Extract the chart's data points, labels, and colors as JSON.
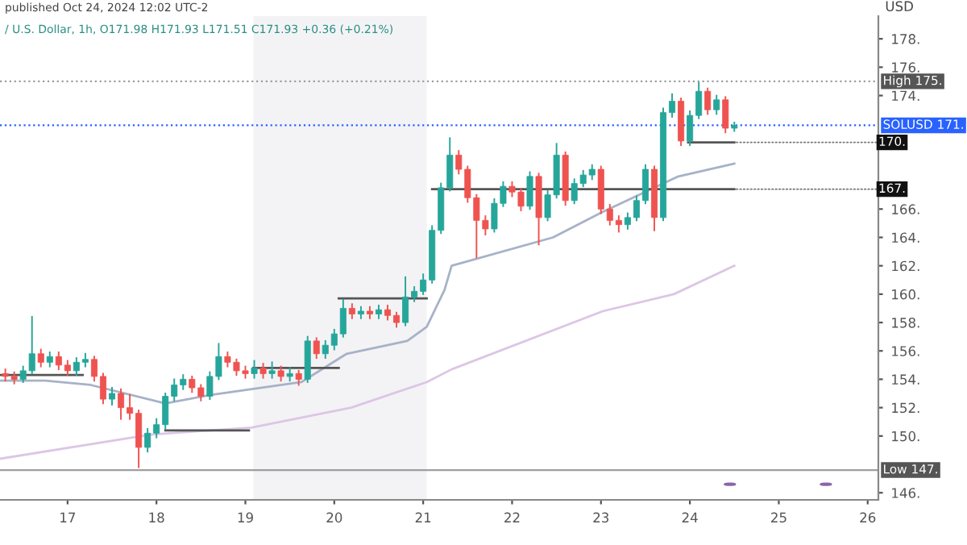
{
  "chart_data": {
    "type": "candlestick",
    "title": "published Oct 24, 2024 12:02 UTC-2",
    "subtitle": "/ U.S. Dollar, 1h, O171.98 H171.93 L171.51 C171.93 +0.36 (+0.21%)",
    "ylabel": "USD",
    "x": [
      16.3,
      16.4,
      16.5,
      16.6,
      16.7,
      16.8,
      16.9,
      17.0,
      17.1,
      17.2,
      17.3,
      17.4,
      17.5,
      17.6,
      17.7,
      17.8,
      17.9,
      18.0,
      18.1,
      18.2,
      18.3,
      18.4,
      18.5,
      18.6,
      18.7,
      18.8,
      18.9,
      19.0,
      19.1,
      19.2,
      19.3,
      19.4,
      19.5,
      19.6,
      19.7,
      19.8,
      19.9,
      20.0,
      20.1,
      20.2,
      20.3,
      20.4,
      20.5,
      20.6,
      20.7,
      20.8,
      20.9,
      21.0,
      21.1,
      21.2,
      21.3,
      21.4,
      21.5,
      21.6,
      21.7,
      21.8,
      21.9,
      22.0,
      22.1,
      22.2,
      22.3,
      22.4,
      22.5,
      22.6,
      22.7,
      22.8,
      22.9,
      23.0,
      23.1,
      23.2,
      23.3,
      23.4,
      23.5,
      23.6,
      23.7,
      23.8,
      23.9,
      24.0,
      24.1,
      24.2,
      24.3,
      24.4,
      24.5
    ],
    "ohlc": [
      [
        154.4,
        154.7,
        153.9,
        154.2
      ],
      [
        154.2,
        154.5,
        153.7,
        154.0
      ],
      [
        154.0,
        154.9,
        153.8,
        154.6
      ],
      [
        154.6,
        158.4,
        154.4,
        155.8
      ],
      [
        155.8,
        156.1,
        154.9,
        155.2
      ],
      [
        155.2,
        155.9,
        154.9,
        155.6
      ],
      [
        155.6,
        155.9,
        154.7,
        155.0
      ],
      [
        155.0,
        155.3,
        154.3,
        154.6
      ],
      [
        154.6,
        155.5,
        154.3,
        155.2
      ],
      [
        155.2,
        155.8,
        154.9,
        155.4
      ],
      [
        155.4,
        155.6,
        153.9,
        154.2
      ],
      [
        154.2,
        154.4,
        152.3,
        152.6
      ],
      [
        152.6,
        153.4,
        152.2,
        153.0
      ],
      [
        153.0,
        153.3,
        151.2,
        152.0
      ],
      [
        152.0,
        152.9,
        151.2,
        151.6
      ],
      [
        151.6,
        151.8,
        147.8,
        149.2
      ],
      [
        149.2,
        150.5,
        148.9,
        150.2
      ],
      [
        150.2,
        151.2,
        149.9,
        150.8
      ],
      [
        150.8,
        153.0,
        150.5,
        152.8
      ],
      [
        152.8,
        154.0,
        152.5,
        153.6
      ],
      [
        153.6,
        154.3,
        153.3,
        154.0
      ],
      [
        154.0,
        154.2,
        153.1,
        153.4
      ],
      [
        153.4,
        153.6,
        152.5,
        152.8
      ],
      [
        152.8,
        154.5,
        152.6,
        154.2
      ],
      [
        154.2,
        156.5,
        154.0,
        155.6
      ],
      [
        155.6,
        155.9,
        154.9,
        155.2
      ],
      [
        155.2,
        155.4,
        154.3,
        154.6
      ],
      [
        154.6,
        154.9,
        154.1,
        154.4
      ],
      [
        154.4,
        155.3,
        154.1,
        154.8
      ],
      [
        154.8,
        155.1,
        154.1,
        154.4
      ],
      [
        154.4,
        155.2,
        154.1,
        154.6
      ],
      [
        154.6,
        154.9,
        153.9,
        154.2
      ],
      [
        154.2,
        154.8,
        153.9,
        154.4
      ],
      [
        154.4,
        154.6,
        153.6,
        154.0
      ],
      [
        154.0,
        157.0,
        153.8,
        156.7
      ],
      [
        156.7,
        156.9,
        155.5,
        155.8
      ],
      [
        155.8,
        156.7,
        155.5,
        156.4
      ],
      [
        156.4,
        157.5,
        156.1,
        157.2
      ],
      [
        157.2,
        159.6,
        157.0,
        159.0
      ],
      [
        159.0,
        159.3,
        158.3,
        158.6
      ],
      [
        158.6,
        159.1,
        158.3,
        158.8
      ],
      [
        158.8,
        159.1,
        158.3,
        158.6
      ],
      [
        158.6,
        159.2,
        158.3,
        158.9
      ],
      [
        158.9,
        159.2,
        158.2,
        158.5
      ],
      [
        158.5,
        158.7,
        157.7,
        158.0
      ],
      [
        158.0,
        161.2,
        157.8,
        159.8
      ],
      [
        159.8,
        160.5,
        159.5,
        160.2
      ],
      [
        160.2,
        161.4,
        160.0,
        161.0
      ],
      [
        161.0,
        164.8,
        160.8,
        164.5
      ],
      [
        164.5,
        167.8,
        164.3,
        167.5
      ],
      [
        167.5,
        171.0,
        167.3,
        169.8
      ],
      [
        169.8,
        170.1,
        168.5,
        168.8
      ],
      [
        168.8,
        169.0,
        166.5,
        166.8
      ],
      [
        166.8,
        167.0,
        162.6,
        165.2
      ],
      [
        165.2,
        165.5,
        164.2,
        164.6
      ],
      [
        164.6,
        166.7,
        164.4,
        166.4
      ],
      [
        166.4,
        167.9,
        166.2,
        167.6
      ],
      [
        167.6,
        167.9,
        166.9,
        167.2
      ],
      [
        167.2,
        167.4,
        165.9,
        166.2
      ],
      [
        166.2,
        168.6,
        166.0,
        168.3
      ],
      [
        168.3,
        168.5,
        163.5,
        165.4
      ],
      [
        165.4,
        167.3,
        165.2,
        167.0
      ],
      [
        167.0,
        170.6,
        166.8,
        169.8
      ],
      [
        169.8,
        170.0,
        166.3,
        166.6
      ],
      [
        166.6,
        168.1,
        166.4,
        167.8
      ],
      [
        167.8,
        168.7,
        167.6,
        168.4
      ],
      [
        168.4,
        169.1,
        168.1,
        168.8
      ],
      [
        168.8,
        169.0,
        165.7,
        166.0
      ],
      [
        166.0,
        166.3,
        164.9,
        165.2
      ],
      [
        165.2,
        165.5,
        164.4,
        164.9
      ],
      [
        164.9,
        165.7,
        164.6,
        165.4
      ],
      [
        165.4,
        166.9,
        165.2,
        166.6
      ],
      [
        166.6,
        169.1,
        166.4,
        168.8
      ],
      [
        168.8,
        169.0,
        164.5,
        165.4
      ],
      [
        165.4,
        173.1,
        165.2,
        172.8
      ],
      [
        172.8,
        174.1,
        172.5,
        173.6
      ],
      [
        173.6,
        173.8,
        170.5,
        170.8
      ],
      [
        170.8,
        172.9,
        170.5,
        172.6
      ],
      [
        172.6,
        174.9,
        172.4,
        174.3
      ],
      [
        174.3,
        174.5,
        172.7,
        173.0
      ],
      [
        173.0,
        174.0,
        172.7,
        173.7
      ],
      [
        173.7,
        173.9,
        171.4,
        171.7
      ],
      [
        171.7,
        172.1,
        171.5,
        171.9
      ]
    ],
    "series": [
      {
        "type": "line",
        "color": "#a7b2c8",
        "x": [
          16.24,
          16.75,
          17.26,
          18.1,
          18.61,
          19.63,
          20.14,
          20.82,
          21.04,
          21.24,
          21.32,
          22.46,
          23.02,
          23.87,
          24.5
        ],
        "values": [
          153.9,
          153.9,
          153.6,
          152.3,
          152.9,
          153.8,
          155.8,
          156.7,
          157.7,
          160.3,
          162.0,
          164.0,
          165.8,
          168.3,
          169.2
        ]
      },
      {
        "type": "line",
        "color": "#dcc6e4",
        "x": [
          16.24,
          17.93,
          19.07,
          20.19,
          21.04,
          21.32,
          23.02,
          23.82,
          24.5
        ],
        "values": [
          148.4,
          150.1,
          150.6,
          152.0,
          153.8,
          154.7,
          158.8,
          160.0,
          162.0
        ]
      },
      {
        "type": "line",
        "color": "#555555",
        "x": [
          16.24,
          17.17
        ],
        "values": [
          154.3,
          154.3
        ]
      },
      {
        "type": "line",
        "color": "#555555",
        "x": [
          18.1,
          19.04
        ],
        "values": [
          150.4,
          150.4
        ]
      },
      {
        "type": "line",
        "color": "#555555",
        "x": [
          19.09,
          20.05
        ],
        "values": [
          154.8,
          154.8
        ]
      },
      {
        "type": "line",
        "color": "#555555",
        "x": [
          20.05,
          21.04
        ],
        "values": [
          159.7,
          159.7
        ]
      },
      {
        "type": "line",
        "color": "#555555",
        "x": [
          21.1,
          24.5
        ],
        "values": [
          167.4,
          167.4
        ]
      },
      {
        "type": "line",
        "color": "#555555",
        "x": [
          23.98,
          24.5
        ],
        "values": [
          170.7,
          170.7
        ]
      }
    ],
    "bands": [
      {
        "axis": "x",
        "from": 19.09,
        "to": 21.04,
        "color": "#f3f3f5"
      }
    ],
    "ref_lines": [
      {
        "axis": "y",
        "value": 175.0,
        "label": "High 175.",
        "color": "#9e9e9e",
        "line_style": "dotted"
      },
      {
        "axis": "y",
        "value": 171.9,
        "label": "SOLUSD 171.",
        "color": "#2962ff",
        "line_style": "dotted"
      },
      {
        "axis": "y",
        "value": 147.6,
        "label": "Low 147.",
        "color": "#9e9e9e",
        "line_style": "solid"
      }
    ],
    "annotations": [
      {
        "text": "170.",
        "x": 24.5,
        "y": 170.7
      },
      {
        "text": "167.",
        "x": 24.5,
        "y": 167.4
      }
    ],
    "xlim": [
      16.24,
      26.12
    ],
    "xticks": [
      17,
      18,
      19,
      20,
      21,
      22,
      23,
      24,
      25,
      26
    ],
    "ylim": [
      145.5,
      179.6
    ],
    "yticks": [
      {
        "value": 146,
        "label": "146."
      },
      {
        "value": 150,
        "label": "150."
      },
      {
        "value": 152,
        "label": "152."
      },
      {
        "value": 154,
        "label": "154."
      },
      {
        "value": 156,
        "label": "156."
      },
      {
        "value": 158,
        "label": "158."
      },
      {
        "value": 160,
        "label": "160."
      },
      {
        "value": 162,
        "label": "162."
      },
      {
        "value": 164,
        "label": "164."
      },
      {
        "value": 166,
        "label": "166."
      },
      {
        "value": 174,
        "label": "174."
      },
      {
        "value": 176,
        "label": "176."
      },
      {
        "value": 178,
        "label": "178."
      }
    ],
    "grid": false
  }
}
